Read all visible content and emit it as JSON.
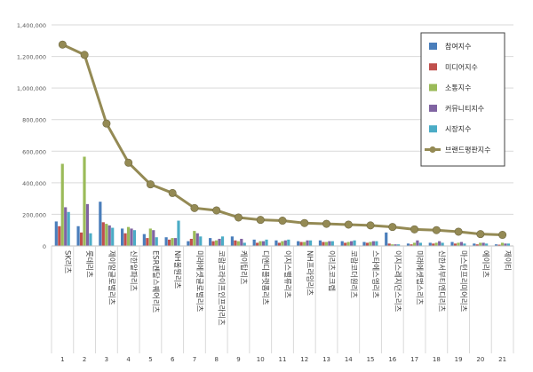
{
  "chart_data": {
    "type": "bar",
    "title": "",
    "xlabel": "",
    "ylabel": "",
    "ylim": [
      0,
      1400000
    ],
    "yticks": [
      0,
      200000,
      400000,
      600000,
      800000,
      1000000,
      1200000,
      1400000
    ],
    "ytick_labels": [
      "0",
      "200,000",
      "400,000",
      "600,000",
      "800,000",
      "1,000,000",
      "1,200,000",
      "1,400,000"
    ],
    "grid": true,
    "legend_position": "top-right",
    "categories": [
      "SK리츠",
      "롯데리츠",
      "제이알글로벌리츠",
      "신한알파리츠",
      "ESR켄달스퀘어리츠",
      "NH올원리츠",
      "미래에셋글로벌리츠",
      "코람코라이프인프라리츠",
      "케이탑리츠",
      "디앤디플랫폼리츠",
      "이지스밸류리츠",
      "NH프라임리츠",
      "이리츠코크렙",
      "코람코더원리츠",
      "스타에스엠리츠",
      "이지스레지던스리츠",
      "미래에셋맵스리츠",
      "신한서부티엔디리츠",
      "마스턴프리미어리츠",
      "에이리츠",
      "제이티"
    ],
    "category_numbers": [
      "1",
      "2",
      "3",
      "4",
      "5",
      "6",
      "7",
      "8",
      "9",
      "10",
      "11",
      "12",
      "13",
      "14",
      "15",
      "16",
      "17",
      "18",
      "19",
      "20",
      "21"
    ],
    "series": [
      {
        "name": "참여지수",
        "kind": "bar",
        "color": "#4a7ebb",
        "values": [
          155000,
          125000,
          280000,
          110000,
          75000,
          55000,
          30000,
          50000,
          60000,
          40000,
          35000,
          30000,
          35000,
          30000,
          25000,
          85000,
          15000,
          20000,
          25000,
          15000,
          10000
        ]
      },
      {
        "name": "미디어지수",
        "kind": "bar",
        "color": "#c0504d",
        "values": [
          125000,
          85000,
          150000,
          80000,
          50000,
          40000,
          45000,
          30000,
          35000,
          20000,
          20000,
          25000,
          25000,
          20000,
          20000,
          15000,
          10000,
          15000,
          15000,
          10000,
          8000
        ]
      },
      {
        "name": "소통지수",
        "kind": "bar",
        "color": "#9bbb59",
        "values": [
          520000,
          565000,
          140000,
          120000,
          110000,
          50000,
          95000,
          35000,
          30000,
          30000,
          30000,
          25000,
          25000,
          25000,
          25000,
          10000,
          20000,
          20000,
          20000,
          20000,
          20000
        ]
      },
      {
        "name": "커뮤니티지수",
        "kind": "bar",
        "color": "#8064a2",
        "values": [
          245000,
          265000,
          130000,
          110000,
          100000,
          50000,
          80000,
          45000,
          45000,
          30000,
          35000,
          35000,
          30000,
          30000,
          30000,
          10000,
          35000,
          30000,
          25000,
          20000,
          15000
        ]
      },
      {
        "name": "시장지수",
        "kind": "bar",
        "color": "#4bacc6",
        "values": [
          215000,
          80000,
          115000,
          100000,
          55000,
          160000,
          60000,
          60000,
          20000,
          40000,
          40000,
          35000,
          30000,
          35000,
          30000,
          10000,
          20000,
          20000,
          15000,
          15000,
          15000
        ]
      },
      {
        "name": "브랜드평판지수",
        "kind": "line",
        "color": "#948a54",
        "values": [
          1275000,
          1210000,
          775000,
          527000,
          390000,
          335000,
          240000,
          225000,
          180000,
          165000,
          160000,
          145000,
          140000,
          135000,
          130000,
          120000,
          105000,
          100000,
          90000,
          75000,
          70000
        ]
      }
    ]
  }
}
